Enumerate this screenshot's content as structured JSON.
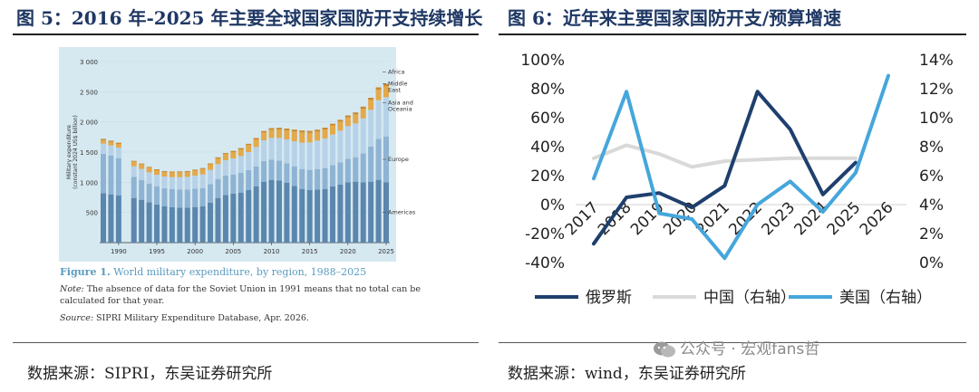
{
  "left": {
    "title": "图 5：2016 年-2025 年主要全球国家国防开支持续增长",
    "caption_label": "Figure 1.",
    "caption_text": " World military expenditure, by region, 1988–2025",
    "note_label": "Note:",
    "note_text": " The absence of data for the Soviet Union in 1991 means that no total can be calculated for that year.",
    "source_label": "Source:",
    "source_text": " SIPRI Military Expenditure Database, Apr. 2026.",
    "source_line": "数据来源：SIPRI，东吴证券研究所"
  },
  "right": {
    "title": "图 6：近年来主要国家国防开支/预算增速",
    "source_line": "数据来源：wind，东吴证券研究所"
  },
  "watermark": "公众号 · 宏观fans哲",
  "colors": {
    "americas": "#5b86ad",
    "europe": "#8fb3d3",
    "asia": "#b7d2e8",
    "middle_east": "#e3a94b",
    "africa": "#c98a2e",
    "russia": "#1f3f6e",
    "china": "#d9d9d9",
    "usa": "#45a6dc"
  },
  "chart_data": [
    {
      "type": "bar",
      "stacked": true,
      "title": "",
      "ylabel": "Military expenditure (constant 2024 US$ billion)",
      "ylim": [
        0,
        3000
      ],
      "yticks": [
        "3 000",
        "2 500",
        "2 000",
        "1 500",
        "1 000",
        "500"
      ],
      "ytick_values": [
        3000,
        2500,
        2000,
        1500,
        1000,
        500
      ],
      "xticks": [
        "1990",
        "1995",
        "2000",
        "2005",
        "2010",
        "2015",
        "2020",
        "2025"
      ],
      "xtick_values": [
        1990,
        1995,
        2000,
        2005,
        2010,
        2015,
        2020,
        2025
      ],
      "categories": [
        1988,
        1989,
        1990,
        1991,
        1992,
        1993,
        1994,
        1995,
        1996,
        1997,
        1998,
        1999,
        2000,
        2001,
        2002,
        2003,
        2004,
        2005,
        2006,
        2007,
        2008,
        2009,
        2010,
        2011,
        2012,
        2013,
        2014,
        2015,
        2016,
        2017,
        2018,
        2019,
        2020,
        2021,
        2022,
        2023,
        2024,
        2025
      ],
      "series": [
        {
          "name": "Americas",
          "values": [
            820,
            800,
            780,
            null,
            740,
            710,
            670,
            630,
            600,
            585,
            580,
            580,
            590,
            600,
            660,
            740,
            790,
            810,
            830,
            870,
            930,
            1010,
            1040,
            1030,
            990,
            940,
            890,
            870,
            880,
            890,
            930,
            960,
            1000,
            1010,
            1000,
            1010,
            1040,
            1000
          ]
        },
        {
          "name": "Europe",
          "values": [
            650,
            640,
            620,
            null,
            350,
            330,
            310,
            305,
            300,
            300,
            300,
            300,
            305,
            305,
            310,
            315,
            320,
            320,
            325,
            330,
            335,
            340,
            335,
            330,
            325,
            325,
            330,
            335,
            340,
            345,
            355,
            370,
            390,
            405,
            480,
            580,
            680,
            760
          ]
        },
        {
          "name": "Asia and Oceania",
          "values": [
            170,
            170,
            175,
            null,
            175,
            180,
            185,
            190,
            195,
            200,
            205,
            210,
            215,
            225,
            235,
            245,
            255,
            265,
            280,
            300,
            320,
            345,
            360,
            375,
            395,
            415,
            435,
            455,
            470,
            490,
            505,
            525,
            540,
            560,
            580,
            610,
            640,
            650
          ]
        },
        {
          "name": "Middle East",
          "values": [
            60,
            60,
            60,
            null,
            75,
            75,
            75,
            75,
            75,
            78,
            80,
            80,
            85,
            90,
            90,
            95,
            100,
            105,
            110,
            115,
            125,
            130,
            135,
            140,
            150,
            160,
            170,
            160,
            150,
            150,
            150,
            150,
            145,
            150,
            160,
            165,
            175,
            180
          ]
        },
        {
          "name": "Africa",
          "values": [
            20,
            20,
            20,
            null,
            15,
            15,
            15,
            15,
            15,
            15,
            15,
            15,
            15,
            16,
            17,
            18,
            19,
            20,
            21,
            22,
            23,
            25,
            27,
            28,
            30,
            32,
            33,
            32,
            31,
            30,
            30,
            30,
            32,
            32,
            33,
            35,
            38,
            40
          ]
        }
      ],
      "legend": [
        "Africa",
        "Middle East",
        "Asia and Oceania",
        "Europe",
        "Americas"
      ]
    },
    {
      "type": "line",
      "title": "",
      "x": [
        "2017",
        "2018",
        "2019",
        "2020",
        "2021",
        "2022",
        "2023",
        "2024",
        "2025",
        "2026"
      ],
      "ylim_left": [
        -40,
        100
      ],
      "yticks_left": [
        "100%",
        "80%",
        "60%",
        "40%",
        "20%",
        "0%",
        "-20%",
        "-40%"
      ],
      "ytick_values_left": [
        100,
        80,
        60,
        40,
        20,
        0,
        -20,
        -40
      ],
      "ylim_right": [
        0,
        14
      ],
      "yticks_right": [
        "14%",
        "12%",
        "10%",
        "8%",
        "6%",
        "4%",
        "2%",
        "0%"
      ],
      "ytick_values_right": [
        14,
        12,
        10,
        8,
        6,
        4,
        2,
        0
      ],
      "series": [
        {
          "name": "俄罗斯",
          "axis": "left",
          "values": [
            -27,
            5,
            8,
            -2,
            13,
            78,
            52,
            7,
            29,
            null
          ]
        },
        {
          "name": "中国（右轴）",
          "axis": "right",
          "values": [
            7.2,
            8.1,
            7.5,
            6.6,
            7.0,
            7.1,
            7.2,
            7.2,
            7.2,
            null
          ]
        },
        {
          "name": "美国（右轴）",
          "axis": "right",
          "values": [
            5.8,
            11.8,
            3.4,
            3.0,
            0.3,
            4.0,
            5.6,
            3.5,
            6.2,
            12.9
          ]
        }
      ],
      "legend": [
        "俄罗斯",
        "中国（右轴）",
        "美国（右轴）"
      ],
      "legend_position": "bottom"
    }
  ]
}
